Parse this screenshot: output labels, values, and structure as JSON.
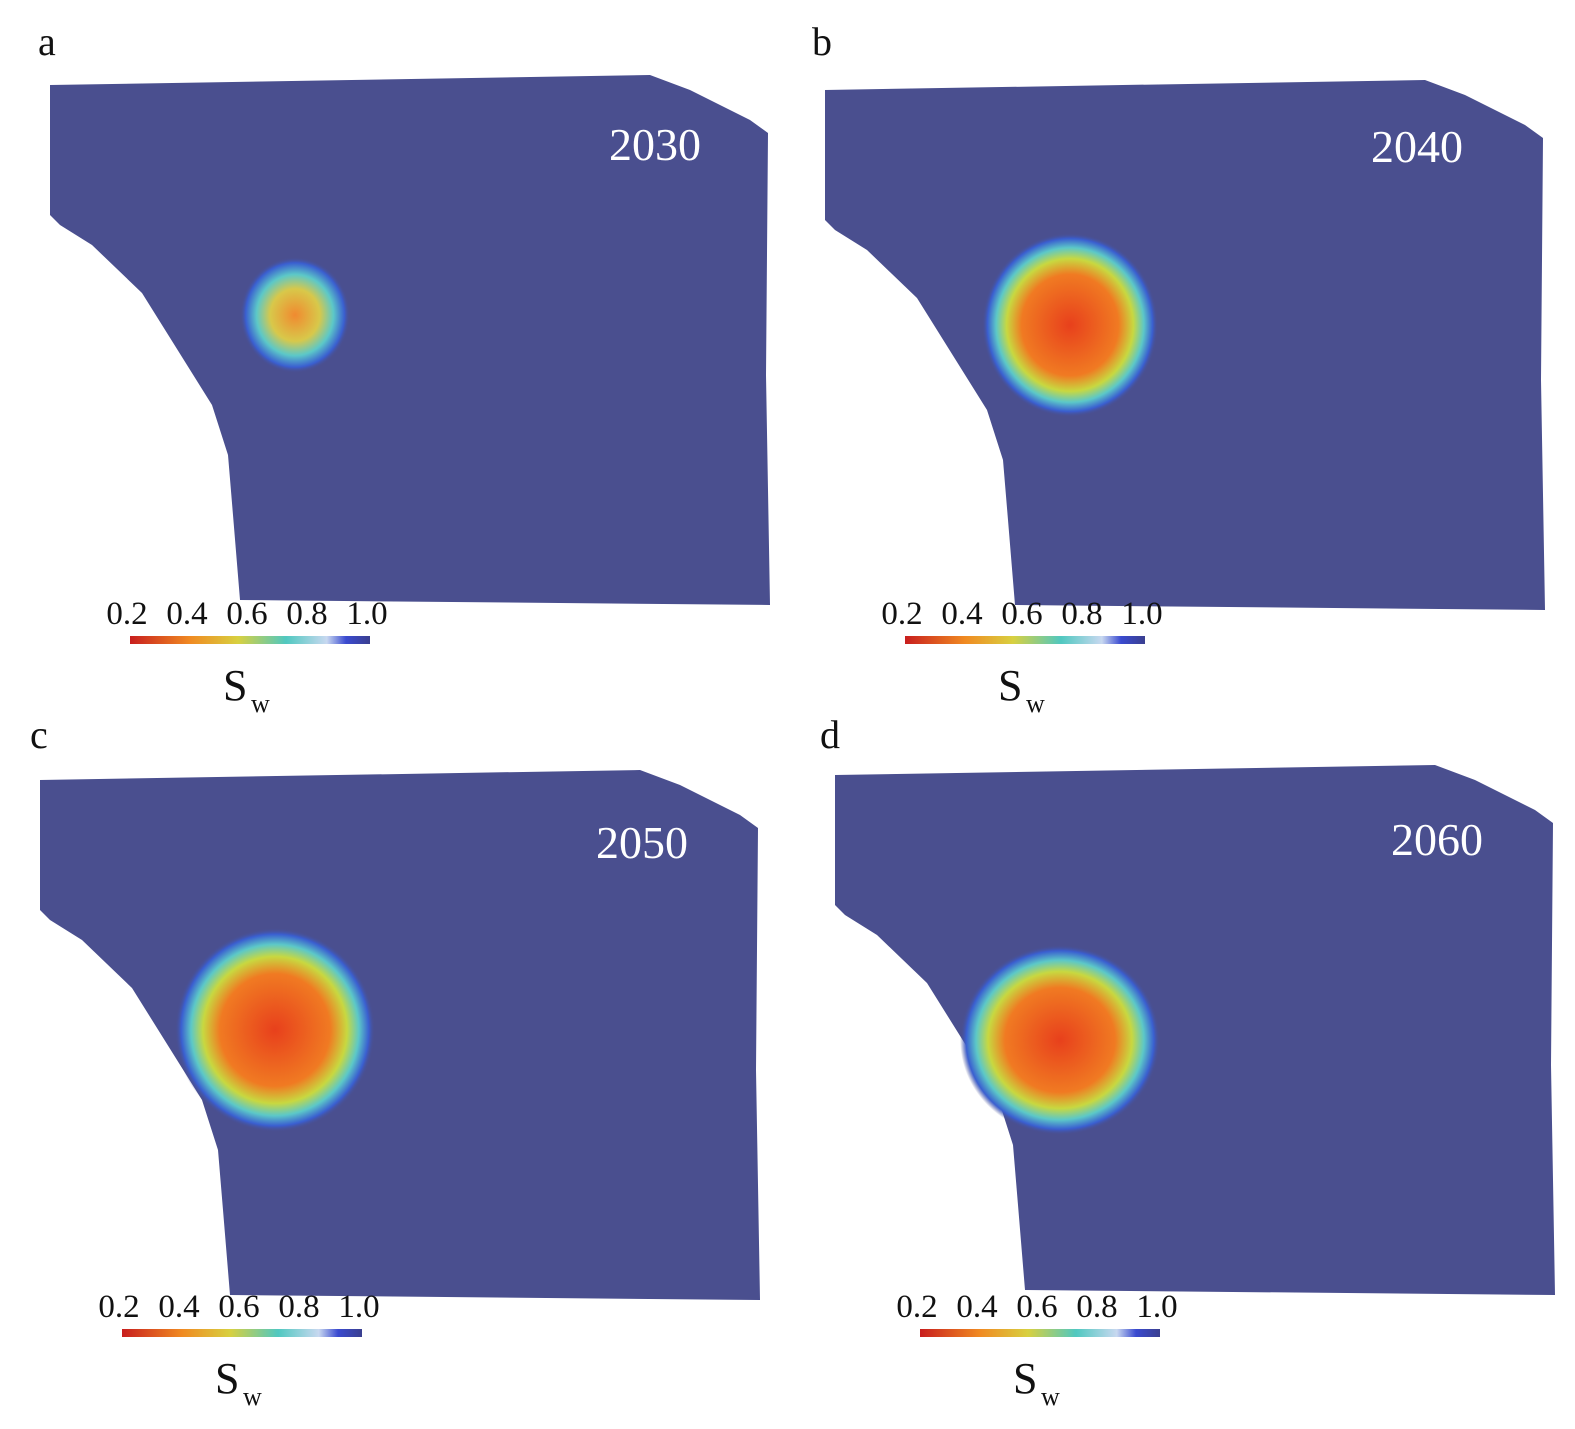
{
  "panels": [
    {
      "label": "a",
      "year": "2030",
      "colorbar": {
        "ticks": [
          "0.2",
          "0.4",
          "0.6",
          "0.8",
          "1.0"
        ],
        "symbol": "S",
        "subscript": "w"
      }
    },
    {
      "label": "b",
      "year": "2040",
      "colorbar": {
        "ticks": [
          "0.2",
          "0.4",
          "0.6",
          "0.8",
          "1.0"
        ],
        "symbol": "S",
        "subscript": "w"
      }
    },
    {
      "label": "c",
      "year": "2050",
      "colorbar": {
        "ticks": [
          "0.2",
          "0.4",
          "0.6",
          "0.8",
          "1.0"
        ],
        "symbol": "S",
        "subscript": "w"
      }
    },
    {
      "label": "d",
      "year": "2060",
      "colorbar": {
        "ticks": [
          "0.2",
          "0.4",
          "0.6",
          "0.8",
          "1.0"
        ],
        "symbol": "S",
        "subscript": "w"
      }
    }
  ]
}
